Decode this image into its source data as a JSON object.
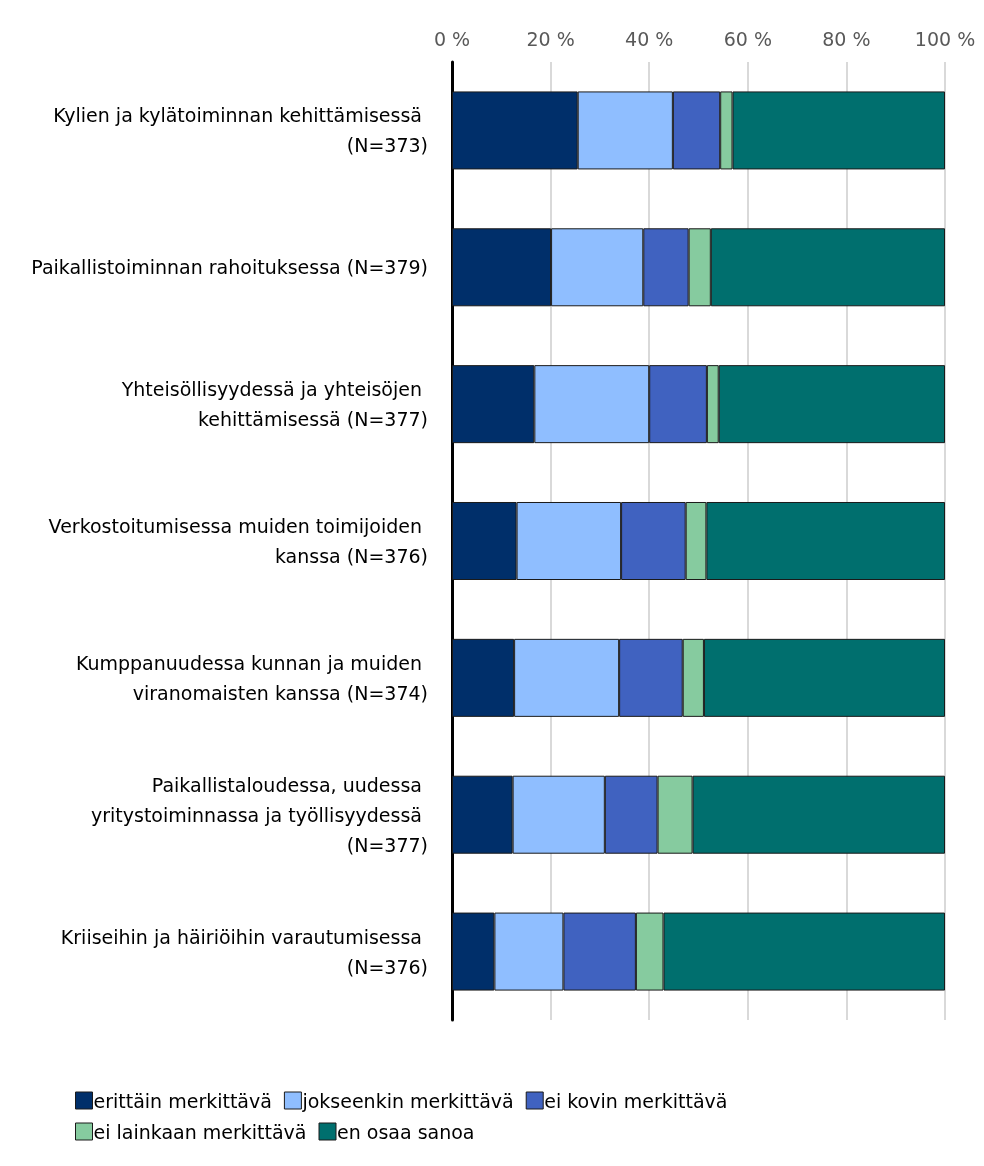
{
  "chart_data": {
    "type": "bar",
    "orientation": "horizontal",
    "stacked": true,
    "categories": [
      "Kylien ja kylätoiminnan kehittämisessä (N=373)",
      "Paikallistoiminnan rahoituksessa (N=379)",
      "Yhteisöllisyydessä ja yhteisöjen kehittämisessä (N=377)",
      "Verkostoitumisessa muiden toimijoiden kanssa (N=376)",
      "Kumppanuudessa kunnan ja muiden viranomaisten kanssa (N=374)",
      "Paikallistaloudessa, uudessa yritystoiminnassa ja työllisyydessä (N=377)",
      "Kriiseihin ja häiriöihin varautumisessa (N=376)"
    ],
    "series": [
      {
        "name": "erittäin merkittävä",
        "color": "#002f6a",
        "values": [
          25.5,
          20.1,
          16.7,
          13.1,
          12.6,
          12.3,
          8.6
        ]
      },
      {
        "name": "jokseenkin merkittävä",
        "color": "#8fbeff",
        "values": [
          19.3,
          18.7,
          23.3,
          21.2,
          21.3,
          18.7,
          14.0
        ]
      },
      {
        "name": "ei kovin merkittävä",
        "color": "#4062c0",
        "values": [
          9.6,
          9.2,
          11.7,
          13.1,
          12.9,
          10.7,
          14.7
        ]
      },
      {
        "name": "ei lainkaan merkittävä",
        "color": "#86cb9f",
        "values": [
          2.5,
          4.5,
          2.4,
          4.2,
          4.3,
          7.1,
          5.6
        ]
      },
      {
        "name": "en osaa sanoa",
        "color": "#006f6e",
        "values": [
          43.1,
          47.5,
          45.9,
          48.4,
          48.9,
          51.2,
          57.1
        ]
      }
    ],
    "xlim": [
      0,
      100
    ],
    "xticks": [
      {
        "value": 0,
        "label": "0 %"
      },
      {
        "value": 20,
        "label": "20 %"
      },
      {
        "value": 40,
        "label": "40 %"
      },
      {
        "value": 60,
        "label": "60 %"
      },
      {
        "value": 80,
        "label": "80 %"
      },
      {
        "value": 100,
        "label": "100 %"
      }
    ],
    "grid": "x",
    "legend": "bottom"
  }
}
